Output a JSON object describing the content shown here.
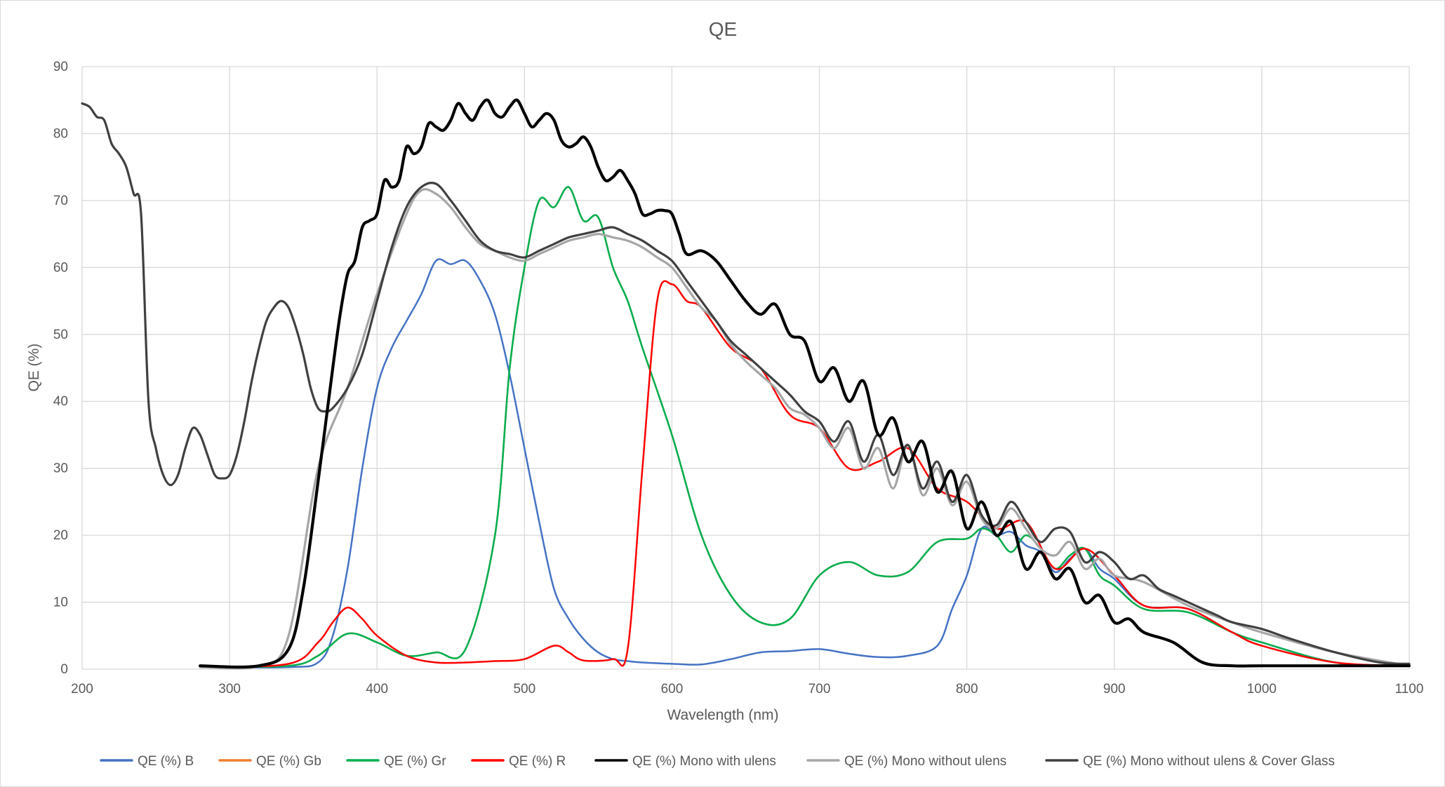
{
  "chart_data": {
    "type": "line",
    "title": "QE",
    "xlabel": "Wavelength (nm)",
    "ylabel": "QE  (%)",
    "xlim": [
      200,
      1100
    ],
    "ylim": [
      0,
      90
    ],
    "xticks": [
      200,
      300,
      400,
      500,
      600,
      700,
      800,
      900,
      1000,
      1100
    ],
    "yticks": [
      0,
      10,
      20,
      30,
      40,
      50,
      60,
      70,
      80,
      90
    ],
    "grid": true,
    "legend_position": "bottom",
    "series": [
      {
        "name": "QE (%) B",
        "color": "#4472c4",
        "width": 2.5,
        "x": [
          280,
          340,
          360,
          370,
          380,
          390,
          400,
          410,
          420,
          430,
          440,
          450,
          460,
          470,
          480,
          490,
          500,
          510,
          520,
          530,
          540,
          550,
          560,
          570,
          580,
          600,
          620,
          640,
          660,
          680,
          700,
          720,
          740,
          760,
          780,
          790,
          800,
          810,
          820,
          830,
          840,
          850,
          860,
          870,
          880,
          890,
          900,
          920,
          950,
          980,
          1000,
          1050,
          1100
        ],
        "y": [
          0.3,
          0.3,
          1.0,
          5.0,
          15.0,
          30.0,
          42.0,
          48.0,
          52.0,
          56.0,
          61.0,
          60.5,
          61.0,
          58.0,
          53.0,
          44.0,
          33.0,
          22.0,
          12.0,
          7.5,
          4.5,
          2.5,
          1.5,
          1.2,
          1.0,
          0.8,
          0.7,
          1.5,
          2.5,
          2.7,
          3.0,
          2.3,
          1.8,
          2.0,
          3.5,
          9.0,
          14.0,
          21.0,
          20.0,
          20.5,
          18.5,
          17.5,
          14.5,
          16.5,
          18.0,
          15.0,
          13.5,
          9.5,
          9.0,
          5.5,
          4.0,
          1.0,
          0.5
        ]
      },
      {
        "name": "QE (%) Gb",
        "color": "#ed7d31",
        "width": 2.5,
        "x": [
          280,
          340,
          360,
          380,
          400,
          420,
          440,
          460,
          480,
          490,
          500,
          510,
          520,
          530,
          540,
          550,
          560,
          570,
          580,
          600,
          620,
          640,
          660,
          680,
          700,
          720,
          740,
          760,
          780,
          800,
          810,
          820,
          830,
          840,
          850,
          860,
          870,
          880,
          890,
          900,
          920,
          950,
          980,
          1000,
          1050,
          1100
        ],
        "y": [
          0.3,
          0.5,
          2.0,
          5.3,
          4.0,
          2.0,
          2.5,
          3.0,
          20.0,
          45.0,
          60.0,
          70.0,
          69.0,
          72.0,
          67.0,
          67.5,
          60.0,
          55.0,
          48.0,
          35.0,
          20.0,
          11.0,
          7.0,
          7.5,
          14.0,
          16.0,
          14.0,
          14.5,
          19.0,
          19.5,
          21.0,
          20.0,
          17.5,
          20.0,
          18.0,
          15.0,
          17.0,
          18.0,
          14.0,
          12.5,
          9.0,
          8.5,
          5.5,
          4.0,
          1.0,
          0.5
        ]
      },
      {
        "name": "QE (%) Gr",
        "color": "#00b050",
        "width": 2.5,
        "x": [
          280,
          340,
          360,
          380,
          400,
          420,
          440,
          460,
          480,
          490,
          500,
          510,
          520,
          530,
          540,
          550,
          560,
          570,
          580,
          600,
          620,
          640,
          660,
          680,
          700,
          720,
          740,
          760,
          780,
          800,
          810,
          820,
          830,
          840,
          850,
          860,
          870,
          880,
          890,
          900,
          920,
          950,
          980,
          1000,
          1050,
          1100
        ],
        "y": [
          0.3,
          0.5,
          2.0,
          5.3,
          4.0,
          2.0,
          2.5,
          3.0,
          20.0,
          45.0,
          60.0,
          70.0,
          69.0,
          72.0,
          67.0,
          67.5,
          60.0,
          55.0,
          48.0,
          35.0,
          20.0,
          11.0,
          7.0,
          7.5,
          14.0,
          16.0,
          14.0,
          14.5,
          19.0,
          19.5,
          21.0,
          20.0,
          17.5,
          20.0,
          18.0,
          15.0,
          17.0,
          18.0,
          14.0,
          12.5,
          9.0,
          8.5,
          5.5,
          4.0,
          1.0,
          0.5
        ]
      },
      {
        "name": "QE (%) R",
        "color": "#ff0000",
        "width": 2.5,
        "x": [
          280,
          340,
          360,
          370,
          380,
          390,
          400,
          420,
          440,
          460,
          480,
          500,
          520,
          530,
          540,
          560,
          570,
          580,
          590,
          600,
          610,
          620,
          640,
          660,
          680,
          700,
          720,
          740,
          760,
          780,
          800,
          820,
          840,
          860,
          880,
          900,
          920,
          950,
          980,
          1000,
          1050,
          1100
        ],
        "y": [
          0.3,
          0.8,
          4.0,
          7.0,
          9.2,
          7.5,
          5.0,
          2.0,
          1.0,
          1.0,
          1.2,
          1.5,
          3.5,
          2.5,
          1.3,
          1.5,
          3.0,
          30.0,
          55.0,
          57.5,
          55.0,
          54.0,
          48.0,
          45.0,
          38.0,
          36.0,
          30.0,
          31.0,
          33.0,
          27.0,
          25.0,
          21.0,
          22.0,
          15.0,
          18.0,
          14.0,
          9.5,
          9.0,
          5.5,
          3.5,
          1.0,
          0.5
        ]
      },
      {
        "name": "QE (%) Mono with ulens",
        "color": "#000000",
        "width": 4.2,
        "x": [
          280,
          320,
          340,
          350,
          360,
          370,
          375,
          380,
          385,
          390,
          395,
          400,
          405,
          410,
          415,
          420,
          425,
          430,
          435,
          440,
          445,
          450,
          455,
          460,
          465,
          470,
          475,
          480,
          485,
          490,
          495,
          500,
          505,
          510,
          515,
          520,
          525,
          530,
          535,
          540,
          545,
          550,
          555,
          560,
          565,
          570,
          575,
          580,
          585,
          590,
          595,
          600,
          605,
          610,
          620,
          630,
          640,
          650,
          660,
          670,
          680,
          690,
          700,
          710,
          720,
          730,
          740,
          750,
          760,
          770,
          780,
          790,
          800,
          810,
          820,
          830,
          840,
          850,
          860,
          870,
          880,
          890,
          900,
          910,
          920,
          940,
          960,
          980,
          1000,
          1050,
          1100
        ],
        "y": [
          0.5,
          0.5,
          3.0,
          12.0,
          28.0,
          45.0,
          53.0,
          59.0,
          61.0,
          66.0,
          67.0,
          68.0,
          73.0,
          72.0,
          73.0,
          78.0,
          77.0,
          78.0,
          81.5,
          81.0,
          80.5,
          82.0,
          84.5,
          83.0,
          82.0,
          84.0,
          85.0,
          83.0,
          82.5,
          84.0,
          85.0,
          83.0,
          81.0,
          82.0,
          83.0,
          82.0,
          79.0,
          78.0,
          78.5,
          79.5,
          78.0,
          75.0,
          73.0,
          73.5,
          74.5,
          73.0,
          71.0,
          68.0,
          68.0,
          68.5,
          68.5,
          68.0,
          65.0,
          62.0,
          62.5,
          61.0,
          58.0,
          55.0,
          53.0,
          54.5,
          50.0,
          49.0,
          43.0,
          45.0,
          40.0,
          43.0,
          35.0,
          37.5,
          31.0,
          34.0,
          26.5,
          29.5,
          21.0,
          25.0,
          20.0,
          22.0,
          15.0,
          17.5,
          13.5,
          15.0,
          10.0,
          11.0,
          7.0,
          7.5,
          5.5,
          4.0,
          1.0,
          0.5,
          0.5,
          0.5,
          0.5
        ]
      },
      {
        "name": "QE (%) Mono without ulens",
        "color": "#a6a6a6",
        "width": 3.2,
        "x": [
          280,
          320,
          340,
          360,
          380,
          400,
          420,
          430,
          440,
          450,
          460,
          470,
          480,
          490,
          500,
          510,
          520,
          530,
          540,
          550,
          560,
          570,
          580,
          590,
          600,
          610,
          620,
          630,
          640,
          650,
          660,
          670,
          680,
          690,
          700,
          710,
          720,
          730,
          740,
          750,
          760,
          770,
          780,
          790,
          800,
          810,
          820,
          830,
          840,
          850,
          860,
          870,
          880,
          890,
          900,
          920,
          950,
          980,
          1000,
          1050,
          1100
        ],
        "y": [
          0.3,
          0.5,
          5.0,
          30.0,
          42.0,
          56.0,
          68.0,
          71.5,
          71.0,
          69.0,
          66.0,
          63.5,
          62.5,
          61.5,
          61.0,
          62.0,
          63.0,
          64.0,
          64.5,
          65.0,
          64.5,
          64.0,
          63.0,
          61.5,
          60.0,
          57.0,
          54.0,
          52.0,
          48.5,
          46.0,
          44.0,
          42.0,
          39.0,
          38.0,
          36.0,
          33.0,
          36.0,
          30.0,
          33.0,
          27.0,
          33.5,
          26.0,
          30.0,
          24.5,
          28.0,
          22.5,
          21.0,
          24.0,
          21.0,
          18.0,
          17.0,
          19.0,
          15.0,
          16.5,
          14.0,
          13.0,
          9.5,
          7.0,
          5.5,
          2.5,
          0.5
        ]
      },
      {
        "name": "QE (%) Mono without ulens & Cover Glass",
        "color": "#404040",
        "width": 3.2,
        "x": [
          200,
          205,
          210,
          215,
          220,
          225,
          230,
          235,
          240,
          245,
          250,
          255,
          260,
          265,
          270,
          275,
          280,
          285,
          290,
          295,
          300,
          305,
          310,
          315,
          320,
          325,
          330,
          335,
          340,
          345,
          350,
          355,
          360,
          365,
          370,
          380,
          390,
          400,
          410,
          420,
          430,
          440,
          450,
          460,
          470,
          480,
          490,
          500,
          510,
          520,
          530,
          540,
          550,
          560,
          570,
          580,
          590,
          600,
          610,
          620,
          630,
          640,
          650,
          660,
          670,
          680,
          690,
          700,
          710,
          720,
          730,
          740,
          750,
          760,
          770,
          780,
          790,
          800,
          810,
          820,
          830,
          840,
          850,
          860,
          870,
          880,
          890,
          900,
          910,
          920,
          930,
          940,
          950,
          960,
          970,
          980,
          1000,
          1020,
          1050,
          1080,
          1100
        ],
        "y": [
          84.5,
          84.0,
          82.5,
          82.0,
          78.5,
          77.0,
          75.0,
          71.0,
          68.0,
          40.0,
          33.0,
          29.0,
          27.5,
          29.0,
          33.0,
          36.0,
          35.0,
          32.0,
          29.0,
          28.5,
          29.0,
          32.0,
          37.0,
          43.0,
          48.0,
          52.0,
          54.0,
          55.0,
          54.0,
          51.0,
          47.0,
          42.0,
          39.0,
          38.5,
          39.0,
          42.0,
          47.0,
          55.0,
          63.0,
          69.0,
          72.0,
          72.5,
          70.0,
          67.0,
          64.0,
          62.5,
          62.0,
          61.5,
          62.5,
          63.5,
          64.5,
          65.0,
          65.5,
          66.0,
          65.0,
          64.0,
          62.5,
          61.0,
          58.0,
          55.0,
          52.0,
          49.0,
          47.0,
          45.0,
          43.0,
          41.0,
          38.5,
          37.0,
          34.0,
          37.0,
          31.0,
          35.0,
          29.0,
          33.5,
          27.0,
          31.0,
          25.0,
          29.0,
          23.0,
          21.5,
          25.0,
          22.0,
          19.0,
          21.0,
          20.5,
          16.0,
          17.5,
          16.0,
          13.5,
          14.0,
          12.0,
          11.0,
          10.0,
          9.0,
          8.0,
          7.0,
          6.0,
          4.5,
          2.5,
          1.0,
          0.8
        ]
      }
    ]
  }
}
